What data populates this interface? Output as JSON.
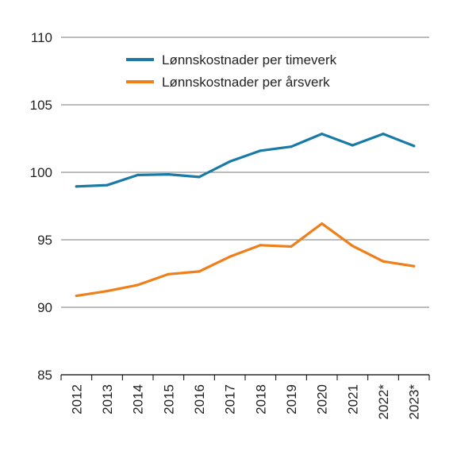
{
  "chart_data": {
    "type": "line",
    "title": "",
    "xlabel": "",
    "ylabel": "",
    "x": [
      "2012",
      "2013",
      "2014",
      "2015",
      "2016",
      "2017",
      "2018",
      "2019",
      "2020",
      "2021",
      "2022*",
      "2023*"
    ],
    "ylim": [
      85,
      110
    ],
    "yticks": [
      85,
      90,
      95,
      100,
      105,
      110
    ],
    "grid": "horizontal",
    "legend_position": "top-center",
    "series": [
      {
        "name": "Lønnskostnader per timeverk",
        "color": "#1a7aa6",
        "values": [
          98.95,
          99.05,
          99.8,
          99.85,
          99.65,
          100.8,
          101.6,
          101.9,
          102.85,
          102.0,
          102.85,
          101.95
        ]
      },
      {
        "name": "Lønnskostnader per årsverk",
        "color": "#ee7f1b",
        "values": [
          90.85,
          91.2,
          91.65,
          92.45,
          92.65,
          93.75,
          94.6,
          94.5,
          96.2,
          94.55,
          93.4,
          93.05
        ]
      }
    ]
  }
}
